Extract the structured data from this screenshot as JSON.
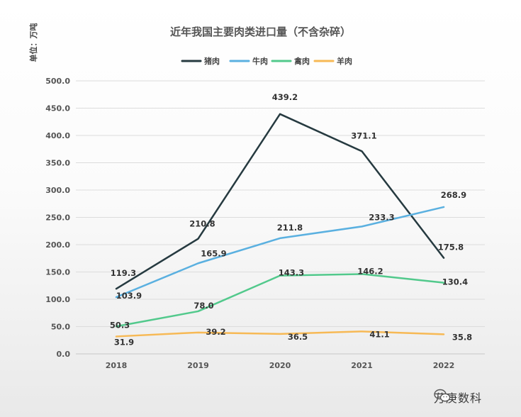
{
  "chart_data": {
    "type": "line",
    "title": "近年我国主要肉类进口量（不含杂碎）",
    "ylabel": "单位：万吨",
    "xlabel": "",
    "categories": [
      "2018",
      "2019",
      "2020",
      "2021",
      "2022"
    ],
    "ylim": [
      0,
      500
    ],
    "yticks": [
      0,
      50,
      100,
      150,
      200,
      250,
      300,
      350,
      400,
      450,
      500
    ],
    "ytick_labels": [
      "0.0",
      "50.0",
      "100.0",
      "150.0",
      "200.0",
      "250.0",
      "300.0",
      "350.0",
      "400.0",
      "450.0",
      "500.0"
    ],
    "grid": true,
    "legend_position": "top-center",
    "series": [
      {
        "name": "猪肉",
        "color": "#263a40",
        "values": [
          119.3,
          210.8,
          439.2,
          371.1,
          175.8
        ],
        "labels": [
          "119.3",
          "210.8",
          "439.2",
          "371.1",
          "175.8"
        ]
      },
      {
        "name": "牛肉",
        "color": "#5ab0e0",
        "values": [
          103.9,
          165.9,
          211.8,
          233.3,
          268.9
        ],
        "labels": [
          "103.9",
          "165.9",
          "211.8",
          "233.3",
          "268.9"
        ]
      },
      {
        "name": "禽肉",
        "color": "#52c98c",
        "values": [
          50.3,
          78.0,
          143.3,
          146.2,
          130.4
        ],
        "labels": [
          "50.3",
          "78.0",
          "143.3",
          "146.2",
          "130.4"
        ]
      },
      {
        "name": "羊肉",
        "color": "#f7b955",
        "values": [
          31.9,
          39.2,
          36.5,
          41.1,
          35.8
        ],
        "labels": [
          "31.9",
          "39.2",
          "36.5",
          "41.1",
          "35.8"
        ]
      }
    ]
  },
  "watermark": {
    "icon": "wechat-icon",
    "text": "万庚数科"
  }
}
